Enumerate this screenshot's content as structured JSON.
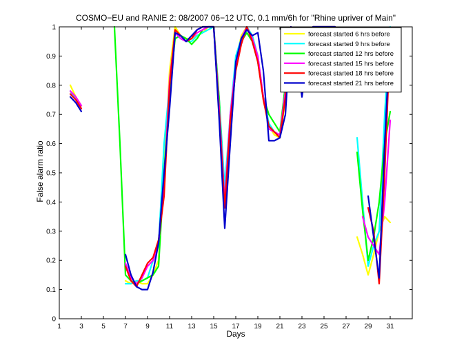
{
  "chart_data": {
    "type": "line",
    "title": "COSMO−EU and RANIE 2: 08/2007 06−12 UTC, 0.1 mm/6h for \"Rhine upriver of Main\"",
    "xlabel": "Days",
    "ylabel": "False alarm ratio",
    "xlim": [
      1,
      33
    ],
    "ylim": [
      0,
      1
    ],
    "xticks": [
      1,
      3,
      5,
      7,
      9,
      11,
      13,
      15,
      17,
      19,
      21,
      23,
      25,
      27,
      29,
      31
    ],
    "yticks": [
      0,
      0.1,
      0.2,
      0.3,
      0.4,
      0.5,
      0.6,
      0.7,
      0.8,
      0.9,
      1
    ],
    "ytick_labels": [
      "0",
      "0.1",
      "0.2",
      "0.3",
      "0.4",
      "0.5",
      "0.6",
      "0.7",
      "0.8",
      "0.9",
      "1"
    ],
    "grid": false,
    "legend_position": "top-right",
    "series": [
      {
        "name": "forecast started 6 hrs before",
        "color": "#ffff00",
        "x": [
          2,
          2.5,
          3,
          7,
          7.5,
          8,
          8.5,
          9,
          9.5,
          10,
          10.5,
          11,
          11.5,
          12,
          12.5,
          13,
          13.5,
          14,
          14.5,
          15,
          15.5,
          16,
          16.5,
          17,
          17.5,
          18,
          18.5,
          19,
          19.5,
          20,
          20.5,
          21,
          21.5,
          22,
          22.5,
          23,
          23.5,
          24,
          24.5,
          25,
          25.5,
          26,
          28,
          28.5,
          29,
          29.5,
          30,
          30.5,
          31
        ],
        "y": [
          0.8,
          0.76,
          0.73,
          0.13,
          0.12,
          0.13,
          0.12,
          0.12,
          0.15,
          0.2,
          0.5,
          0.85,
          1.0,
          0.97,
          0.96,
          0.96,
          0.97,
          0.98,
          1.0,
          1.0,
          0.7,
          0.44,
          0.7,
          0.88,
          0.97,
          1.0,
          0.97,
          0.9,
          0.75,
          0.66,
          0.63,
          0.62,
          0.75,
          1.0,
          0.95,
          0.88,
          0.94,
          1.0,
          0.98,
          1.0,
          1.0,
          1.0,
          0.28,
          0.22,
          0.15,
          0.22,
          0.3,
          0.35,
          0.33
        ]
      },
      {
        "name": "forecast started 9 hrs before",
        "color": "#00ffff",
        "x": [
          2,
          2.5,
          3,
          7,
          7.5,
          8,
          8.5,
          9,
          9.5,
          10,
          10.5,
          11,
          11.5,
          12,
          12.5,
          13,
          13.5,
          14,
          14.5,
          15,
          15.5,
          16,
          16.5,
          17,
          17.5,
          18,
          18.5,
          19,
          19.5,
          20,
          20.5,
          21,
          21.5,
          22,
          22.5,
          23,
          23.5,
          24,
          24.5,
          25,
          25.5,
          26,
          28,
          28.5,
          29,
          29.5,
          30,
          30.5,
          31
        ],
        "y": [
          0.78,
          0.75,
          0.73,
          0.12,
          0.12,
          0.13,
          0.13,
          0.14,
          0.2,
          0.25,
          0.6,
          0.8,
          0.98,
          0.96,
          0.95,
          0.95,
          0.97,
          0.98,
          0.99,
          1.0,
          0.75,
          0.45,
          0.7,
          0.9,
          0.96,
          1.0,
          0.97,
          0.9,
          0.76,
          0.67,
          0.64,
          0.63,
          0.8,
          1.0,
          0.9,
          0.8,
          0.9,
          1.0,
          1.0,
          1.0,
          1.0,
          1.0,
          0.62,
          0.4,
          0.18,
          0.25,
          0.3,
          0.7,
          1.0
        ]
      },
      {
        "name": "forecast started 12 hrs before",
        "color": "#00ff00",
        "x": [
          6,
          6.5,
          7,
          7.5,
          8,
          8.5,
          9,
          9.5,
          10,
          10.5,
          11,
          11.5,
          12,
          12.5,
          13,
          13.5,
          14,
          14.5,
          15,
          15.5,
          16,
          16.5,
          17,
          17.5,
          18,
          18.5,
          19,
          19.5,
          20,
          20.5,
          21,
          21.5,
          22,
          22.5,
          23,
          23.5,
          24,
          24.5,
          25,
          25.5,
          26,
          28,
          28.5,
          29,
          29.5,
          30,
          30.5,
          31
        ],
        "y": [
          1.0,
          0.6,
          0.15,
          0.13,
          0.12,
          0.13,
          0.14,
          0.15,
          0.18,
          0.5,
          0.78,
          0.96,
          0.97,
          0.96,
          0.94,
          0.96,
          0.99,
          1.0,
          1.0,
          0.75,
          0.38,
          0.65,
          0.86,
          0.95,
          0.98,
          0.95,
          0.88,
          0.76,
          0.7,
          0.67,
          0.64,
          0.8,
          0.98,
          0.92,
          0.84,
          0.92,
          1.0,
          1.0,
          1.0,
          1.0,
          1.0,
          0.57,
          0.37,
          0.2,
          0.28,
          0.4,
          0.6,
          0.71
        ]
      },
      {
        "name": "forecast started 15 hrs before",
        "color": "#ff00ff",
        "x": [
          2,
          2.5,
          3,
          7,
          7.5,
          8,
          8.5,
          9,
          9.5,
          10,
          10.5,
          11,
          11.5,
          12,
          12.5,
          13,
          13.5,
          14,
          14.5,
          15,
          15.5,
          16,
          16.5,
          17,
          17.5,
          18,
          18.5,
          19,
          19.5,
          20,
          20.5,
          21,
          21.5,
          22,
          22.5,
          23,
          23.5,
          24,
          24.5,
          25,
          25.5,
          26,
          28.5,
          29,
          29.5,
          30,
          30.5,
          31
        ],
        "y": [
          0.78,
          0.76,
          0.73,
          0.19,
          0.14,
          0.12,
          0.14,
          0.18,
          0.2,
          0.26,
          0.45,
          0.82,
          0.98,
          0.96,
          0.95,
          0.96,
          0.98,
          0.99,
          1.0,
          1.0,
          0.72,
          0.4,
          0.7,
          0.87,
          0.96,
          1.0,
          0.96,
          0.9,
          0.76,
          0.65,
          0.64,
          0.63,
          0.78,
          1.0,
          0.93,
          0.88,
          0.93,
          1.0,
          1.0,
          1.0,
          1.0,
          1.0,
          0.35,
          0.28,
          0.25,
          0.22,
          0.4,
          0.68
        ]
      },
      {
        "name": "forecast started 18 hrs before",
        "color": "#ff0000",
        "x": [
          2,
          2.5,
          3,
          7,
          7.5,
          8,
          8.5,
          9,
          9.5,
          10,
          10.5,
          11,
          11.5,
          12,
          12.5,
          13,
          13.5,
          14,
          14.5,
          15,
          15.5,
          16,
          16.5,
          17,
          17.5,
          18,
          18.5,
          19,
          19.5,
          20,
          20.5,
          21,
          21.5,
          22,
          22.5,
          23,
          23.5,
          24,
          24.5,
          25,
          25.5,
          26,
          29,
          29.5,
          30,
          30.5,
          31
        ],
        "y": [
          0.77,
          0.75,
          0.72,
          0.18,
          0.13,
          0.11,
          0.15,
          0.19,
          0.21,
          0.27,
          0.42,
          0.8,
          0.99,
          0.97,
          0.95,
          0.96,
          0.99,
          1.0,
          1.0,
          1.0,
          0.7,
          0.38,
          0.68,
          0.85,
          0.94,
          1.0,
          0.95,
          0.88,
          0.75,
          0.66,
          0.64,
          0.62,
          0.76,
          1.0,
          0.95,
          0.91,
          0.94,
          1.0,
          1.0,
          1.0,
          1.0,
          1.0,
          0.38,
          0.3,
          0.12,
          0.5,
          0.96
        ]
      },
      {
        "name": "forecast started 21 hrs before",
        "color": "#0000cc",
        "x": [
          2,
          2.5,
          3,
          7,
          7.5,
          8,
          8.5,
          9,
          9.5,
          10,
          10.5,
          11,
          11.5,
          12,
          12.5,
          13,
          13.5,
          14,
          14.5,
          15,
          15.5,
          16,
          16.5,
          17,
          17.5,
          18,
          18.5,
          19,
          19.5,
          20,
          20.5,
          21,
          21.5,
          22,
          22.5,
          23,
          23.5,
          24,
          24.5,
          25,
          25.5,
          26,
          29,
          29.5,
          30,
          30.5,
          31
        ],
        "y": [
          0.76,
          0.74,
          0.71,
          0.22,
          0.15,
          0.11,
          0.1,
          0.1,
          0.16,
          0.26,
          0.5,
          0.72,
          0.98,
          0.97,
          0.95,
          0.97,
          0.99,
          1.0,
          1.0,
          1.0,
          0.68,
          0.31,
          0.6,
          0.88,
          0.96,
          0.99,
          0.97,
          0.98,
          0.85,
          0.61,
          0.61,
          0.62,
          0.7,
          1.0,
          0.9,
          0.76,
          0.9,
          1.0,
          1.0,
          1.0,
          1.0,
          1.0,
          0.42,
          0.28,
          0.14,
          0.6,
          0.98
        ]
      }
    ]
  }
}
